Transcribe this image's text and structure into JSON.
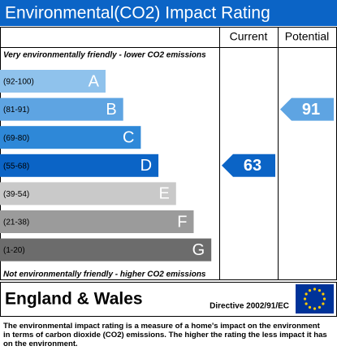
{
  "title": "Environmental(CO2) Impact Rating",
  "columns": {
    "current": "Current",
    "potential": "Potential"
  },
  "top_note": "Very environmentally friendly - lower CO2 emissions",
  "bottom_note": "Not environmentally friendly - higher CO2 emissions",
  "bands": [
    {
      "range": "(92-100)",
      "letter": "A",
      "color": "#8fc2ec"
    },
    {
      "range": "(81-91)",
      "letter": "B",
      "color": "#5ea4e2"
    },
    {
      "range": "(69-80)",
      "letter": "C",
      "color": "#2e88d8"
    },
    {
      "range": "(55-68)",
      "letter": "D",
      "color": "#0b64c6"
    },
    {
      "range": "(39-54)",
      "letter": "E",
      "color": "#c9c9c9"
    },
    {
      "range": "(21-38)",
      "letter": "F",
      "color": "#9b9b9b"
    },
    {
      "range": "(1-20)",
      "letter": "G",
      "color": "#6c6c6c"
    }
  ],
  "current": 63,
  "potential": 91,
  "region": "England & Wales",
  "directive": "Directive 2002/91/EC",
  "description": "The environmental impact rating is a measure of a home's impact on the environment in terms of carbon dioxide (CO2) emissions. The higher the rating the less impact it has on the environment."
}
